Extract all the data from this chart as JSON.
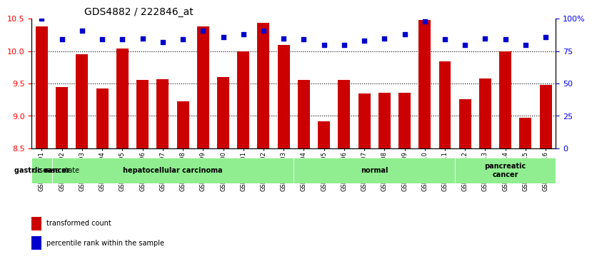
{
  "title": "GDS4882 / 222846_at",
  "samples": [
    "GSM1200291",
    "GSM1200292",
    "GSM1200293",
    "GSM1200294",
    "GSM1200295",
    "GSM1200296",
    "GSM1200297",
    "GSM1200298",
    "GSM1200299",
    "GSM1200300",
    "GSM1200301",
    "GSM1200302",
    "GSM1200303",
    "GSM1200304",
    "GSM1200305",
    "GSM1200306",
    "GSM1200307",
    "GSM1200308",
    "GSM1200309",
    "GSM1200310",
    "GSM1200311",
    "GSM1200312",
    "GSM1200313",
    "GSM1200314",
    "GSM1200315",
    "GSM1200316"
  ],
  "bar_values": [
    10.38,
    9.45,
    9.95,
    9.42,
    10.04,
    9.56,
    9.57,
    9.22,
    10.38,
    9.6,
    10.0,
    10.44,
    10.1,
    9.56,
    8.92,
    9.56,
    9.35,
    9.36,
    9.36,
    10.48,
    9.84,
    9.26,
    9.58,
    10.0,
    8.97,
    9.48
  ],
  "percentile_values": [
    100,
    84,
    91,
    84,
    84,
    85,
    82,
    84,
    91,
    86,
    88,
    91,
    85,
    84,
    80,
    80,
    83,
    85,
    88,
    98,
    84,
    80,
    85,
    84,
    80,
    86
  ],
  "ylim_left": [
    8.5,
    10.5
  ],
  "ylim_right": [
    0,
    100
  ],
  "yticks_left": [
    8.5,
    9.0,
    9.5,
    10.0,
    10.5
  ],
  "yticks_right": [
    0,
    25,
    50,
    75,
    100
  ],
  "ytick_labels_right": [
    "0",
    "25",
    "50",
    "75",
    "100%"
  ],
  "bar_color": "#CC0000",
  "percentile_color": "#0000CC",
  "background_color": "#FFFFFF",
  "disease_groups": [
    {
      "label": "gastric cancer",
      "start": 0,
      "end": 1
    },
    {
      "label": "hepatocellular carcinoma",
      "start": 1,
      "end": 13
    },
    {
      "label": "normal",
      "start": 13,
      "end": 21
    },
    {
      "label": "pancreatic\ncancer",
      "start": 21,
      "end": 26
    }
  ],
  "disease_color": "#90EE90",
  "grid_linestyle": "dotted",
  "bar_width": 0.6
}
